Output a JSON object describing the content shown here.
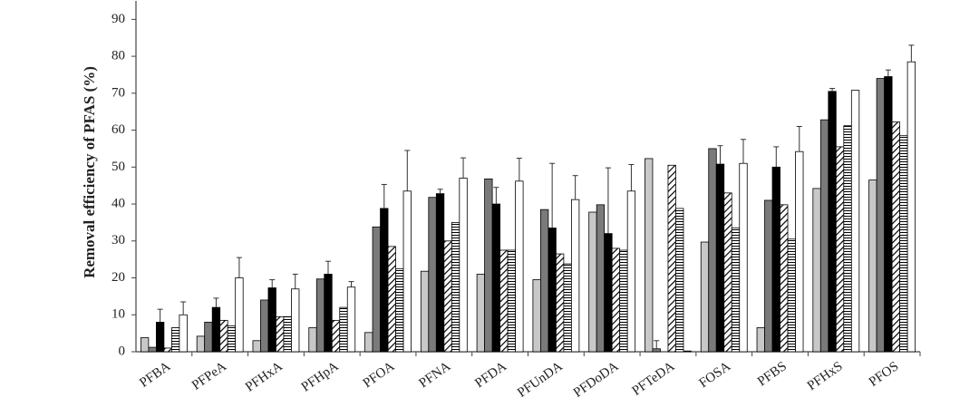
{
  "chart_data": {
    "type": "bar",
    "y_label": "Removal efficiency  of PFAS (%)",
    "categories": [
      "PFBA",
      "PFPeA",
      "PFHxA",
      "PFHpA",
      "PFOA",
      "PFNA",
      "PFDA",
      "PFUnDA",
      "PFDoDA",
      "PFTeDA",
      "FOSA",
      "PFBS",
      "PFHxS",
      "PFOS"
    ],
    "series": [
      {
        "color": "#c8c8c8",
        "hatch": null,
        "values": [
          3.8,
          4.2,
          3,
          6.5,
          5.2,
          21.8,
          21,
          19.5,
          37.8,
          52.3,
          29.7,
          6.5,
          44.2,
          46.5
        ],
        "errors": [
          null,
          null,
          null,
          null,
          null,
          null,
          null,
          null,
          null,
          null,
          null,
          null,
          null,
          null
        ]
      },
      {
        "color": "#7a7a7a",
        "hatch": null,
        "values": [
          1.2,
          8,
          14,
          19.7,
          33.8,
          41.8,
          46.8,
          38.5,
          39.8,
          0.8,
          55,
          41,
          62.8,
          74
        ],
        "errors": [
          null,
          null,
          null,
          null,
          null,
          null,
          null,
          null,
          null,
          2.2,
          null,
          null,
          null,
          null
        ]
      },
      {
        "color": "#000000",
        "hatch": null,
        "values": [
          8,
          12,
          17.3,
          21,
          38.8,
          42.8,
          40,
          33.5,
          32,
          0,
          50.8,
          50,
          70.5,
          74.5
        ],
        "errors": [
          3.5,
          2.5,
          2.2,
          3.5,
          6.5,
          1.2,
          4.5,
          17.5,
          17.8,
          null,
          5,
          5.5,
          0.8,
          1.8
        ]
      },
      {
        "color": "#000000",
        "hatch": "diagonal",
        "values": [
          1,
          8.5,
          9.5,
          8.5,
          28.5,
          30,
          27.5,
          26.5,
          28,
          50.5,
          43,
          39.8,
          55.5,
          62.2
        ],
        "errors": [
          null,
          null,
          null,
          null,
          null,
          null,
          null,
          null,
          null,
          null,
          null,
          null,
          null,
          null
        ]
      },
      {
        "color": "#000000",
        "hatch": "horizontal",
        "values": [
          6.5,
          7,
          9.5,
          12,
          22.5,
          35,
          27.5,
          23.8,
          27.5,
          38.8,
          33.5,
          30.5,
          61.2,
          58.5
        ],
        "errors": [
          null,
          null,
          null,
          null,
          null,
          null,
          null,
          null,
          null,
          null,
          null,
          null,
          null,
          null
        ]
      },
      {
        "color": "#ffffff",
        "hatch": null,
        "values": [
          10,
          20,
          17,
          17.5,
          43.5,
          47,
          46.2,
          41.2,
          43.5,
          0.2,
          51,
          54.2,
          70.8,
          78.5
        ],
        "errors": [
          3.5,
          5.5,
          4,
          1.5,
          11,
          5.5,
          6.2,
          6.5,
          7.2,
          null,
          6.5,
          6.8,
          null,
          4.5
        ]
      }
    ],
    "ylim": [
      0,
      95
    ],
    "yticks": [
      0,
      10,
      20,
      30,
      40,
      50,
      60,
      70,
      80,
      90
    ],
    "grid": false
  }
}
